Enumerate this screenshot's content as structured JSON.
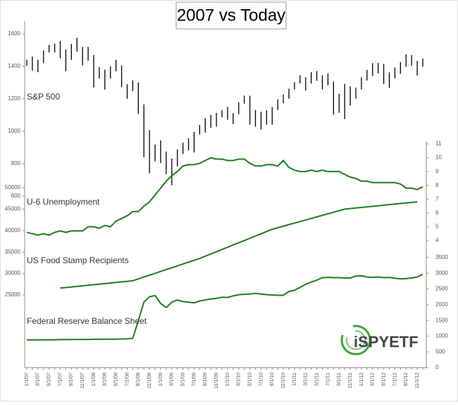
{
  "chart_data": {
    "type": "combo",
    "title": "2007 vs Today",
    "logo": "iSPYETF",
    "categories": [
      "1/1/07",
      null,
      "3/1/07",
      null,
      "5/1/07",
      null,
      "7/1/07",
      null,
      "9/1/07",
      null,
      "11/1/07",
      null,
      "1/1/08",
      null,
      "3/1/08",
      null,
      "5/1/08",
      null,
      "7/1/08",
      null,
      "9/1/08",
      null,
      "11/1/08",
      null,
      "1/1/09",
      null,
      "3/1/09",
      null,
      "5/1/09",
      null,
      "7/1/09",
      null,
      "9/1/09",
      null,
      "11/1/09",
      null,
      "1/1/10",
      null,
      "3/1/10",
      null,
      "5/1/10",
      null,
      "7/1/10",
      null,
      "9/1/10",
      null,
      "11/1/10",
      null,
      "1/1/11",
      null,
      "3/1/11",
      null,
      "5/1/11",
      null,
      "7/1/11",
      null,
      "9/1/11",
      null,
      "11/1/11",
      null,
      "1/1/12",
      null,
      "3/1/12",
      null,
      "5/1/12",
      null,
      "7/1/12",
      null,
      "9/1/12",
      null,
      "11/1/12",
      null
    ],
    "ylim": [
      600,
      1600
    ],
    "yticks": [
      600,
      800,
      1000,
      1200,
      1400,
      1600
    ],
    "y2lim": [
      4,
      11
    ],
    "y2ticks": [
      4,
      5,
      6,
      7,
      8,
      9,
      10,
      11
    ],
    "y3lim": [
      25000,
      50000
    ],
    "y3ticks": [
      25000,
      30000,
      35000,
      40000,
      45000,
      50000
    ],
    "y4lim": [
      0,
      3500
    ],
    "y4ticks": [
      0,
      500,
      1000,
      1500,
      2000,
      2500,
      3000,
      3500
    ],
    "series": [
      {
        "name": "S&P 500",
        "type": "range",
        "axis": "y",
        "color": "#000000",
        "high": [
          1441,
          1460,
          1440,
          1498,
          1532,
          1540,
          1556,
          1504,
          1538,
          1576,
          1520,
          1520,
          1470,
          1396,
          1380,
          1400,
          1440,
          1405,
          1290,
          1313,
          1300,
          1165,
          1007,
          918,
          944,
          875,
          832,
          888,
          930,
          956,
          996,
          1039,
          1080,
          1101,
          1113,
          1130,
          1150,
          1112,
          1180,
          1220,
          1219,
          1131,
          1120,
          1130,
          1149,
          1196,
          1227,
          1262,
          1303,
          1344,
          1333,
          1364,
          1371,
          1346,
          1356,
          1307,
          1231,
          1292,
          1277,
          1269,
          1333,
          1378,
          1420,
          1422,
          1415,
          1363,
          1392,
          1426,
          1474,
          1470,
          1434,
          1448
        ],
        "low": [
          1403,
          1374,
          1364,
          1420,
          1485,
          1485,
          1450,
          1370,
          1440,
          1490,
          1406,
          1435,
          1270,
          1325,
          1256,
          1325,
          1370,
          1272,
          1200,
          1247,
          1106,
          840,
          741,
          815,
          804,
          735,
          667,
          783,
          860,
          881,
          869,
          980,
          992,
          1020,
          1029,
          1085,
          1071,
          1044,
          1105,
          1170,
          1040,
          1028,
          1010,
          1040,
          1040,
          1131,
          1173,
          1200,
          1257,
          1295,
          1250,
          1294,
          1311,
          1258,
          1282,
          1101,
          1114,
          1075,
          1158,
          1202,
          1258,
          1312,
          1340,
          1357,
          1292,
          1267,
          1325,
          1354,
          1397,
          1403,
          1343,
          1398
        ]
      },
      {
        "name": "U-6 Unemployment",
        "type": "line",
        "axis": "y2",
        "color": "#1e7d1e",
        "values": [
          4.6,
          4.5,
          4.4,
          4.5,
          4.4,
          4.6,
          4.7,
          4.6,
          4.7,
          4.7,
          4.7,
          5.0,
          5.0,
          4.9,
          5.1,
          5.0,
          5.4,
          5.6,
          5.8,
          6.1,
          6.1,
          6.5,
          6.8,
          7.3,
          7.8,
          8.3,
          8.7,
          9.0,
          9.4,
          9.5,
          9.5,
          9.6,
          9.8,
          10.0,
          9.9,
          9.9,
          9.8,
          9.8,
          9.9,
          9.9,
          9.6,
          9.4,
          9.4,
          9.5,
          9.5,
          9.4,
          9.8,
          9.3,
          9.1,
          9.0,
          9.0,
          9.1,
          9.0,
          9.1,
          9.0,
          9.0,
          9.0,
          8.8,
          8.6,
          8.5,
          8.3,
          8.3,
          8.2,
          8.2,
          8.2,
          8.2,
          8.2,
          8.1,
          7.8,
          7.8,
          7.7,
          7.9
        ]
      },
      {
        "name": "US Food Stamp Recipients",
        "type": "line",
        "axis": "y3",
        "color": "#1e7d1e",
        "values": [
          null,
          null,
          null,
          null,
          null,
          null,
          26600,
          26730,
          26860,
          26990,
          27120,
          27250,
          27380,
          27510,
          27650,
          27780,
          27910,
          28040,
          28170,
          28300,
          28730,
          29170,
          29600,
          30030,
          30470,
          30900,
          31330,
          31770,
          32200,
          32630,
          33070,
          33500,
          34020,
          34550,
          35070,
          35590,
          36120,
          36640,
          37160,
          37680,
          38210,
          38730,
          39250,
          39780,
          40300,
          40660,
          41020,
          41380,
          41750,
          42110,
          42470,
          42830,
          43190,
          43550,
          43920,
          44280,
          44640,
          45000,
          45130,
          45260,
          45390,
          45520,
          45650,
          45780,
          45910,
          46050,
          46180,
          46310,
          46440,
          46570,
          46700,
          null
        ]
      },
      {
        "name": "Federal Reserve Balance Sheet",
        "type": "line",
        "axis": "y4",
        "color": "#1e7d1e",
        "values": [
          880,
          880,
          885,
          885,
          885,
          885,
          890,
          890,
          890,
          895,
          895,
          895,
          900,
          900,
          905,
          905,
          905,
          910,
          915,
          930,
          1490,
          2080,
          2250,
          2290,
          2040,
          1910,
          2080,
          2150,
          2100,
          2080,
          2060,
          2120,
          2150,
          2180,
          2200,
          2240,
          2230,
          2280,
          2320,
          2330,
          2340,
          2360,
          2340,
          2320,
          2310,
          2300,
          2300,
          2420,
          2460,
          2550,
          2650,
          2720,
          2780,
          2860,
          2870,
          2860,
          2860,
          2850,
          2850,
          2910,
          2920,
          2880,
          2870,
          2880,
          2860,
          2870,
          2840,
          2820,
          2830,
          2850,
          2880,
          2970
        ]
      }
    ]
  }
}
